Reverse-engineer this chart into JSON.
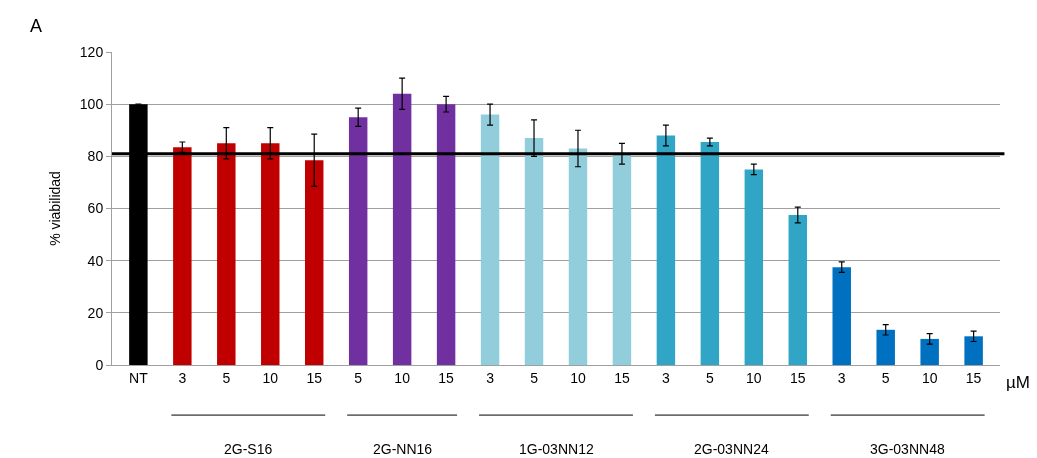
{
  "chart_data": {
    "type": "bar",
    "ylabel": "% viabilidad",
    "categories": [
      "NT",
      "3",
      "5",
      "10",
      "15",
      "5",
      "10",
      "15",
      "3",
      "5",
      "10",
      "15",
      "3",
      "5",
      "10",
      "15",
      "3",
      "5",
      "10",
      "15"
    ],
    "values": [
      100,
      83.5,
      85,
      85,
      78.5,
      95,
      104,
      100,
      96,
      87,
      83,
      81,
      88,
      85.5,
      75,
      57.5,
      37.5,
      13.5,
      10,
      11
    ],
    "errors": [
      null,
      2,
      6,
      6,
      10,
      3.5,
      6,
      3,
      4,
      7,
      7,
      4,
      4,
      1.5,
      2,
      3,
      2,
      2,
      2,
      2
    ],
    "colors": [
      "#000000",
      "#c00000",
      "#c00000",
      "#c00000",
      "#c00000",
      "#7030a0",
      "#7030a0",
      "#7030a0",
      "#92cddc",
      "#92cddc",
      "#92cddc",
      "#92cddc",
      "#31a5c5",
      "#31a5c5",
      "#31a5c5",
      "#31a5c5",
      "#0070c0",
      "#0070c0",
      "#0070c0",
      "#0070c0"
    ],
    "ylim": [
      0,
      120
    ],
    "yticks": [
      0,
      20,
      40,
      60,
      80,
      100,
      120
    ],
    "grid": "y",
    "ref_lines": [
      {
        "axis": "y",
        "value": 81,
        "color": "#000000"
      }
    ],
    "annotations": [
      "A",
      "µM",
      "2G-S16",
      "2G-NN16",
      "1G-03NN12",
      "2G-03NN24",
      "3G-03NN48"
    ]
  }
}
